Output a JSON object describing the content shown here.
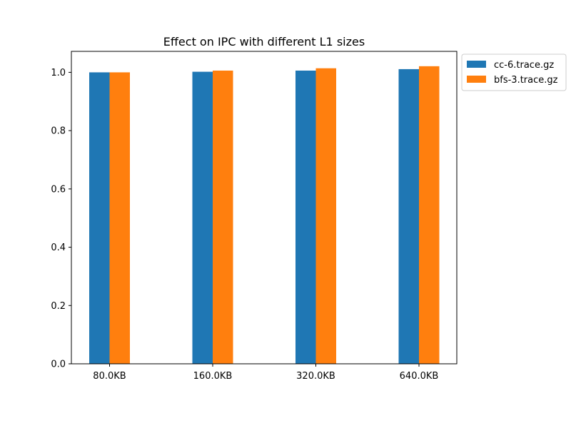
{
  "chart_data": {
    "type": "bar",
    "title": "Effect on IPC with different L1 sizes",
    "xlabel": "",
    "ylabel": "",
    "categories": [
      "80.0KB",
      "160.0KB",
      "320.0KB",
      "640.0KB"
    ],
    "series": [
      {
        "name": "cc-6.trace.gz",
        "color": "#1f77b4",
        "values": [
          1.0,
          1.002,
          1.006,
          1.011
        ]
      },
      {
        "name": "bfs-3.trace.gz",
        "color": "#ff7f0e",
        "values": [
          1.0,
          1.006,
          1.014,
          1.021
        ]
      }
    ],
    "ylim": [
      0,
      1.072
    ],
    "yticks": [
      "0.0",
      "0.2",
      "0.4",
      "0.6",
      "0.8",
      "1.0"
    ],
    "grid": false,
    "legend_position": "outside-top-right"
  }
}
